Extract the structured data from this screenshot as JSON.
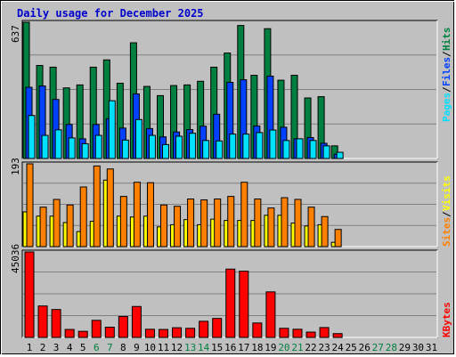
{
  "title": "Daily usage for December 2025",
  "colors": {
    "hits": "#008040",
    "files": "#0040ff",
    "pages": "#00e0ff",
    "visits": "#ffff00",
    "sites": "#ff8000",
    "kbytes": "#ff0000",
    "weekend_label": "#008040",
    "label": "#000000",
    "background": "#c0c0c0"
  },
  "y_max_labels": {
    "top": "637",
    "middle": "193",
    "bottom": "45036"
  },
  "legends": {
    "top": [
      "Pages",
      "Files",
      "Hits"
    ],
    "middle": [
      "Sites",
      "Visits"
    ],
    "bottom": [
      "KBytes"
    ]
  },
  "chart_data": [
    {
      "type": "bar",
      "panel": "hits-files-pages",
      "x": [
        1,
        2,
        3,
        4,
        5,
        6,
        7,
        8,
        9,
        10,
        11,
        12,
        13,
        14,
        15,
        16,
        17,
        18,
        19,
        20,
        21,
        22,
        23,
        24,
        25,
        26,
        27,
        28,
        29,
        30,
        31
      ],
      "ylim": [
        0,
        637
      ],
      "series": [
        {
          "name": "Hits",
          "values": [
            637,
            435,
            427,
            330,
            344,
            427,
            461,
            352,
            541,
            337,
            294,
            341,
            344,
            361,
            427,
            493,
            622,
            389,
            607,
            366,
            389,
            283,
            289,
            59,
            0,
            0,
            0,
            0,
            0,
            0,
            0
          ]
        },
        {
          "name": "Files",
          "values": [
            333,
            339,
            276,
            159,
            92,
            159,
            186,
            142,
            302,
            140,
            101,
            124,
            135,
            151,
            207,
            356,
            368,
            152,
            385,
            146,
            92,
            98,
            71,
            20,
            0,
            0,
            0,
            0,
            0,
            0,
            0
          ]
        },
        {
          "name": "Pages",
          "values": [
            201,
            108,
            134,
            96,
            69,
            108,
            270,
            86,
            182,
            108,
            65,
            104,
            118,
            84,
            82,
            114,
            114,
            121,
            133,
            84,
            92,
            84,
            59,
            29,
            0,
            0,
            0,
            0,
            0,
            0,
            0
          ]
        }
      ]
    },
    {
      "type": "bar",
      "panel": "visits-sites",
      "x": [
        1,
        2,
        3,
        4,
        5,
        6,
        7,
        8,
        9,
        10,
        11,
        12,
        13,
        14,
        15,
        16,
        17,
        18,
        19,
        20,
        21,
        22,
        23,
        24,
        25,
        26,
        27,
        28,
        29,
        30,
        31
      ],
      "ylim": [
        0,
        193
      ],
      "series": [
        {
          "name": "Visits",
          "values": [
            81,
            71,
            71,
            56,
            35,
            59,
            155,
            71,
            69,
            71,
            46,
            51,
            63,
            51,
            64,
            61,
            61,
            61,
            73,
            73,
            55,
            48,
            51,
            10,
            0,
            0,
            0,
            0,
            0,
            0,
            0
          ]
        },
        {
          "name": "Sites",
          "values": [
            193,
            92,
            110,
            97,
            139,
            188,
            181,
            117,
            150,
            149,
            97,
            94,
            111,
            109,
            111,
            117,
            150,
            111,
            90,
            114,
            110,
            92,
            70,
            40,
            0,
            0,
            0,
            0,
            0,
            0,
            0
          ]
        }
      ]
    },
    {
      "type": "bar",
      "panel": "kbytes",
      "x": [
        1,
        2,
        3,
        4,
        5,
        6,
        7,
        8,
        9,
        10,
        11,
        12,
        13,
        14,
        15,
        16,
        17,
        18,
        19,
        20,
        21,
        22,
        23,
        24,
        25,
        26,
        27,
        28,
        29,
        30,
        31
      ],
      "ylim": [
        0,
        45036
      ],
      "series": [
        {
          "name": "KBytes",
          "values": [
            45036,
            16570,
            14700,
            4200,
            3200,
            9000,
            5400,
            11000,
            16300,
            4300,
            4200,
            5100,
            4800,
            8500,
            10000,
            36000,
            34900,
            7600,
            24000,
            4800,
            4300,
            2800,
            5200,
            2000,
            0,
            0,
            0,
            0,
            0,
            0,
            0
          ]
        }
      ]
    }
  ],
  "x_labels": [
    "1",
    "2",
    "3",
    "4",
    "5",
    "6",
    "7",
    "8",
    "9",
    "10",
    "11",
    "12",
    "13",
    "14",
    "15",
    "16",
    "17",
    "18",
    "19",
    "20",
    "21",
    "22",
    "23",
    "24",
    "25",
    "26",
    "27",
    "28",
    "29",
    "30",
    "31"
  ],
  "weekend_days": [
    "6",
    "7",
    "13",
    "14",
    "20",
    "21",
    "27",
    "28"
  ]
}
